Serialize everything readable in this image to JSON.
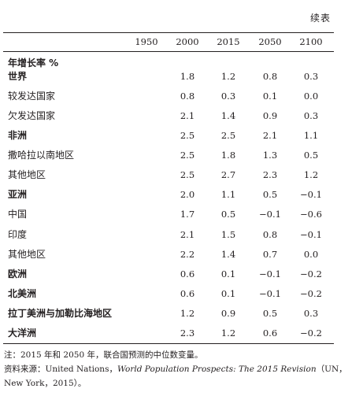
{
  "continued_label": "续表",
  "years": [
    "1950",
    "2000",
    "2015",
    "2050",
    "2100"
  ],
  "unit_label": "年增长率 %",
  "rows": [
    {
      "name": "世界",
      "bold": true,
      "values": [
        "",
        "1.8",
        "1.2",
        "0.8",
        "0.3"
      ]
    },
    {
      "name": "较发达国家",
      "bold": false,
      "values": [
        "",
        "0.8",
        "0.3",
        "0.1",
        "0.0"
      ]
    },
    {
      "name": "欠发达国家",
      "bold": false,
      "values": [
        "",
        "2.1",
        "1.4",
        "0.9",
        "0.3"
      ]
    },
    {
      "name": "非洲",
      "bold": true,
      "values": [
        "",
        "2.5",
        "2.5",
        "2.1",
        "1.1"
      ]
    },
    {
      "name": "撒哈拉以南地区",
      "bold": false,
      "values": [
        "",
        "2.5",
        "1.8",
        "1.3",
        "0.5"
      ]
    },
    {
      "name": "其他地区",
      "bold": false,
      "values": [
        "",
        "2.5",
        "2.7",
        "2.3",
        "1.2"
      ]
    },
    {
      "name": "亚洲",
      "bold": true,
      "values": [
        "",
        "2.0",
        "1.1",
        "0.5",
        "−0.1"
      ]
    },
    {
      "name": "中国",
      "bold": false,
      "values": [
        "",
        "1.7",
        "0.5",
        "−0.1",
        "−0.6"
      ]
    },
    {
      "name": "印度",
      "bold": false,
      "values": [
        "",
        "2.1",
        "1.5",
        "0.8",
        "−0.1"
      ]
    },
    {
      "name": "其他地区",
      "bold": false,
      "values": [
        "",
        "2.2",
        "1.4",
        "0.7",
        "0.0"
      ]
    },
    {
      "name": "欧洲",
      "bold": true,
      "values": [
        "",
        "0.6",
        "0.1",
        "−0.1",
        "−0.2"
      ]
    },
    {
      "name": "北美洲",
      "bold": true,
      "values": [
        "",
        "0.6",
        "0.1",
        "−0.1",
        "−0.2"
      ]
    },
    {
      "name": "拉丁美洲与加勒比海地区",
      "bold": true,
      "values": [
        "",
        "1.2",
        "0.9",
        "0.5",
        "0.3"
      ]
    },
    {
      "name": "大洋洲",
      "bold": true,
      "values": [
        "",
        "2.3",
        "1.2",
        "0.6",
        "−0.2"
      ]
    }
  ],
  "notes": {
    "note_line": "注：2015 年和 2050 年，联合国预测的中位数变量。",
    "source_prefix": "资料来源：United Nations，",
    "source_title": "World Population Prospects: The 2015 Revision",
    "source_suffix": "（UN，",
    "source_line2": "New York，2015）。"
  }
}
